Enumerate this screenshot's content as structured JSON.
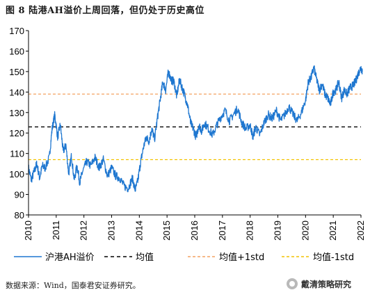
{
  "title": "图 8 陆港AH溢价上周回落，但仍处于历史高位",
  "source_note": "数据来源：Wind，国泰君安证券研究。",
  "brand": "戴清策略研究",
  "brand_icon": "wechat-logo-icon",
  "colors": {
    "series": "#1f77d0",
    "mean": "#000000",
    "plus1std": "#f4a261",
    "minus1std": "#f2c200",
    "axis": "#000000"
  },
  "chart_data": {
    "type": "line",
    "xlim": [
      2010,
      2022
    ],
    "ylim": [
      80,
      170
    ],
    "x_ticks": [
      "2010",
      "2011",
      "2012",
      "2013",
      "2014",
      "2015",
      "2016",
      "2017",
      "2018",
      "2019",
      "2020",
      "2021",
      "2022"
    ],
    "y_ticks": [
      "80",
      "90",
      "100",
      "110",
      "120",
      "130",
      "140",
      "150",
      "160",
      "170"
    ],
    "grid": false,
    "legend_position": "bottom",
    "series": [
      {
        "name": "沪港AH溢价",
        "style": "solid",
        "x": [
          2010.0,
          2010.1,
          2010.2,
          2010.3,
          2010.4,
          2010.5,
          2010.6,
          2010.75,
          2010.85,
          2010.95,
          2011.05,
          2011.15,
          2011.25,
          2011.35,
          2011.45,
          2011.55,
          2011.65,
          2011.75,
          2011.85,
          2011.95,
          2012.1,
          2012.25,
          2012.4,
          2012.55,
          2012.7,
          2012.85,
          2013.0,
          2013.15,
          2013.3,
          2013.45,
          2013.6,
          2013.75,
          2013.85,
          2013.95,
          2014.05,
          2014.15,
          2014.25,
          2014.35,
          2014.45,
          2014.55,
          2014.65,
          2014.75,
          2014.85,
          2014.95,
          2015.05,
          2015.15,
          2015.25,
          2015.35,
          2015.45,
          2015.55,
          2015.65,
          2015.75,
          2015.85,
          2015.95,
          2016.05,
          2016.15,
          2016.25,
          2016.35,
          2016.5,
          2016.65,
          2016.8,
          2016.95,
          2017.1,
          2017.25,
          2017.4,
          2017.55,
          2017.7,
          2017.85,
          2018.0,
          2018.1,
          2018.2,
          2018.35,
          2018.5,
          2018.65,
          2018.8,
          2018.95,
          2019.1,
          2019.25,
          2019.4,
          2019.55,
          2019.7,
          2019.85,
          2020.0,
          2020.1,
          2020.2,
          2020.3,
          2020.4,
          2020.5,
          2020.6,
          2020.7,
          2020.8,
          2020.9,
          2021.0,
          2021.1,
          2021.2,
          2021.3,
          2021.4,
          2021.5,
          2021.6,
          2021.7,
          2021.8,
          2021.9,
          2022.0,
          2022.05
        ],
        "y": [
          103,
          97,
          101,
          105,
          98,
          104,
          103,
          108,
          122,
          129,
          118,
          124,
          111,
          114,
          100,
          109,
          97,
          104,
          96,
          101,
          106,
          104,
          108,
          103,
          107,
          99,
          103,
          99,
          98,
          94,
          93,
          98,
          92,
          97,
          106,
          113,
          118,
          116,
          122,
          117,
          127,
          136,
          145,
          141,
          150,
          146,
          145,
          138,
          146,
          142,
          138,
          133,
          125,
          122,
          118,
          124,
          121,
          125,
          122,
          119,
          124,
          128,
          131,
          126,
          129,
          132,
          125,
          122,
          124,
          118,
          123,
          119,
          125,
          129,
          127,
          131,
          126,
          129,
          133,
          129,
          126,
          130,
          136,
          145,
          147,
          152,
          146,
          141,
          144,
          139,
          137,
          134,
          140,
          141,
          145,
          137,
          141,
          139,
          142,
          143,
          145,
          149,
          152,
          150
        ]
      },
      {
        "name": "均值",
        "style": "dashed",
        "value": 123
      },
      {
        "name": "均值+1std",
        "style": "dashed",
        "value": 139
      },
      {
        "name": "均值-1std",
        "style": "dashed",
        "value": 107
      }
    ]
  }
}
